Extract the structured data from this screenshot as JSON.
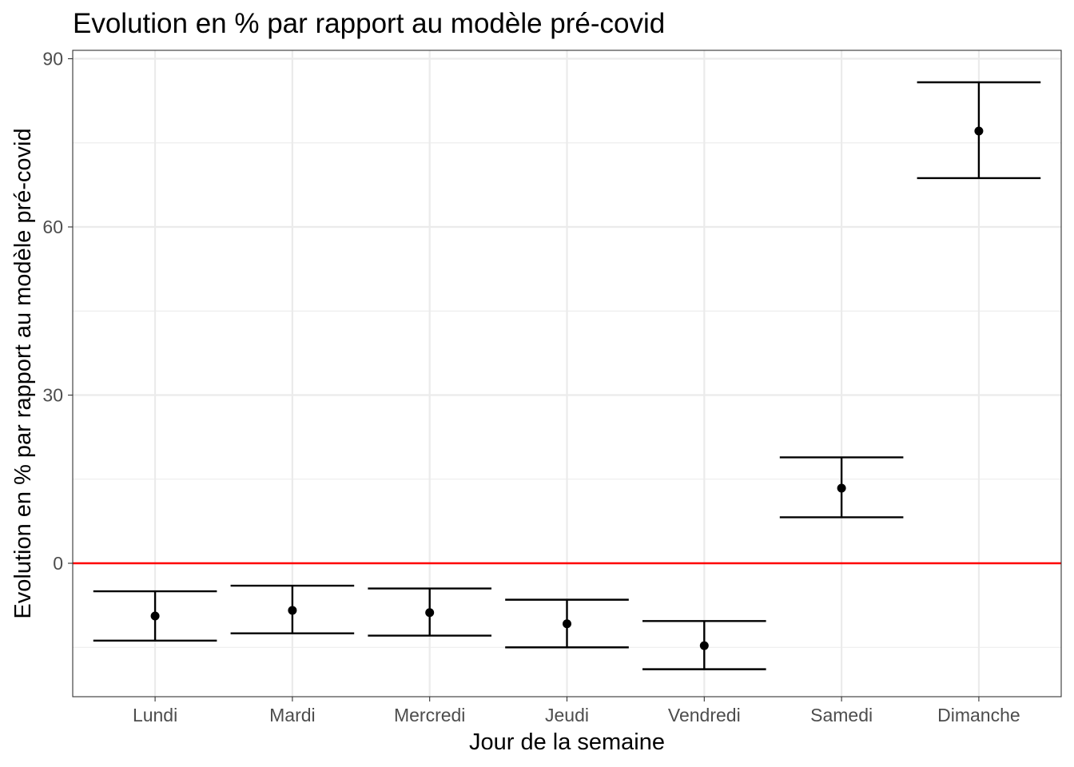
{
  "chart_data": {
    "type": "scatter",
    "title": "Evolution en % par rapport au modèle pré-covid",
    "xlabel": "Jour de la semaine",
    "ylabel": "Evolution en % par rapport au modèle pré-covid",
    "categories": [
      "Lundi",
      "Mardi",
      "Mercredi",
      "Jeudi",
      "Vendredi",
      "Samedi",
      "Dimanche"
    ],
    "series": [
      {
        "values": [
          -9.4,
          -8.4,
          -8.8,
          -10.8,
          -14.7,
          13.4,
          77.1
        ],
        "lower": [
          -13.8,
          -12.5,
          -12.9,
          -15.0,
          -18.9,
          8.2,
          68.7
        ],
        "upper": [
          -5.0,
          -4.0,
          -4.5,
          -6.5,
          -10.3,
          18.9,
          85.8
        ]
      }
    ],
    "ylim": [
      -23.8,
      91.5
    ],
    "yticks": [
      0,
      30,
      60,
      90
    ],
    "reference_line": {
      "y": 0,
      "color": "#ff0000"
    },
    "grid": true,
    "colors": {
      "points": "#000000",
      "grid": "#ebebeb",
      "panel_border": "#333333"
    }
  }
}
